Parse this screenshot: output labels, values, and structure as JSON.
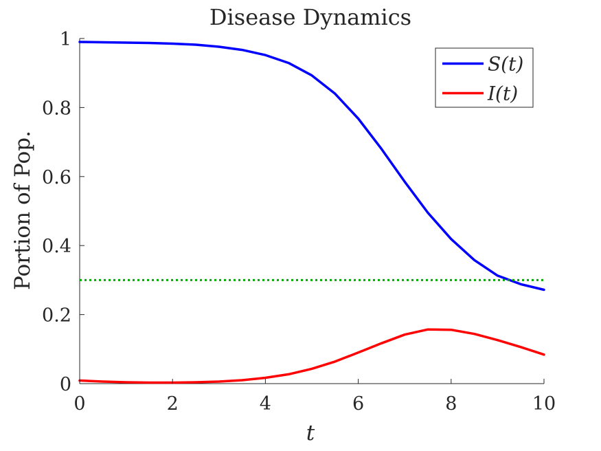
{
  "chart_data": {
    "type": "line",
    "title": "Disease Dynamics",
    "xlabel": "t",
    "ylabel": "Portion of Pop.",
    "xlim": [
      0,
      10
    ],
    "ylim": [
      0,
      1
    ],
    "xticks": [
      0,
      2,
      4,
      6,
      8,
      10
    ],
    "yticks": [
      0,
      0.2,
      0.4,
      0.6,
      0.8,
      1
    ],
    "x_tick_labels": [
      "0",
      "2",
      "4",
      "6",
      "8",
      "10"
    ],
    "y_tick_labels": [
      "0",
      "0.2",
      "0.4",
      "0.6",
      "0.8",
      "1"
    ],
    "grid": false,
    "legend_position": "top-right",
    "series": [
      {
        "name": "S(t)",
        "color": "#0000ff",
        "style": "solid",
        "x": [
          0,
          0.5,
          1,
          1.5,
          2,
          2.5,
          3,
          3.5,
          4,
          4.5,
          5,
          5.5,
          6,
          6.5,
          7,
          7.5,
          8,
          8.5,
          9,
          9.5,
          10
        ],
        "y": [
          0.99,
          0.989,
          0.988,
          0.987,
          0.985,
          0.982,
          0.976,
          0.967,
          0.952,
          0.929,
          0.893,
          0.84,
          0.768,
          0.68,
          0.585,
          0.495,
          0.419,
          0.358,
          0.313,
          0.288,
          0.272
        ]
      },
      {
        "name": "I(t)",
        "color": "#ff0000",
        "style": "solid",
        "x": [
          0,
          0.5,
          1,
          1.5,
          2,
          2.5,
          3,
          3.5,
          4,
          4.5,
          5,
          5.5,
          6,
          6.5,
          7,
          7.5,
          8,
          8.5,
          9,
          9.5,
          10
        ],
        "y": [
          0.009,
          0.006,
          0.004,
          0.003,
          0.003,
          0.004,
          0.006,
          0.01,
          0.017,
          0.027,
          0.043,
          0.064,
          0.09,
          0.117,
          0.142,
          0.157,
          0.156,
          0.144,
          0.126,
          0.106,
          0.084
        ]
      },
      {
        "color": "#00aa00",
        "style": "dotted",
        "x": [
          0,
          10
        ],
        "y": [
          0.3,
          0.3
        ]
      }
    ]
  }
}
